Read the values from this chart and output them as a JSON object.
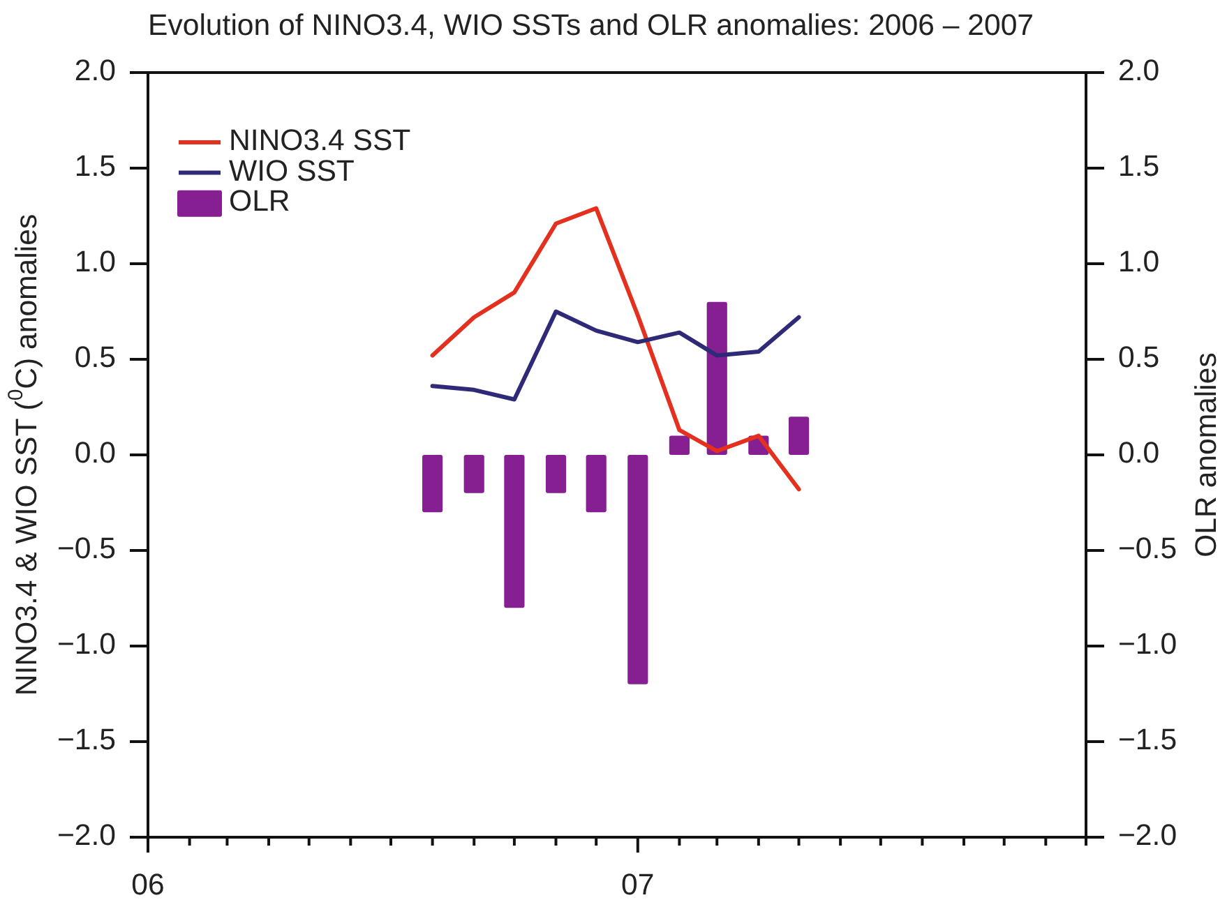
{
  "chart_data": {
    "type": "line",
    "title": "Evolution of NINO3.4, WIO SSTs and OLR anomalies: 2006 – 2007",
    "ylabel": "NINO3.4 & WIO SST ($^{0}$C) anomalies",
    "y2label": "OLR anomalies",
    "x": [
      "2006-08",
      "2006-09",
      "2006-10",
      "2006-11",
      "2006-12",
      "2007-01",
      "2007-02",
      "2007-03",
      "2007-04",
      "2007-05"
    ],
    "xlim": [
      "2006-01",
      "2007-12"
    ],
    "xticks": [
      {
        "value": "2006-01",
        "label": "06"
      },
      {
        "value": "2006-02",
        "label": null
      },
      {
        "value": "2006-03",
        "label": null
      },
      {
        "value": "2006-04",
        "label": null
      },
      {
        "value": "2006-05",
        "label": null
      },
      {
        "value": "2006-06",
        "label": null
      },
      {
        "value": "2006-07",
        "label": null
      },
      {
        "value": "2006-08",
        "label": null
      },
      {
        "value": "2006-09",
        "label": null
      },
      {
        "value": "2006-10",
        "label": null
      },
      {
        "value": "2006-11",
        "label": null
      },
      {
        "value": "2006-12",
        "label": null
      },
      {
        "value": "2007-01",
        "label": "07"
      },
      {
        "value": "2007-02",
        "label": null
      },
      {
        "value": "2007-03",
        "label": null
      },
      {
        "value": "2007-04",
        "label": null
      },
      {
        "value": "2007-05",
        "label": null
      },
      {
        "value": "2007-06",
        "label": null
      },
      {
        "value": "2007-07",
        "label": null
      },
      {
        "value": "2007-08",
        "label": null
      },
      {
        "value": "2007-09",
        "label": null
      },
      {
        "value": "2007-10",
        "label": null
      },
      {
        "value": "2007-11",
        "label": null
      },
      {
        "value": "2007-12",
        "label": null
      }
    ],
    "ylim": [
      -2,
      2
    ],
    "yticks": [
      {
        "value": -2,
        "label": "−2.0"
      },
      {
        "value": -1.5,
        "label": "−1.5"
      },
      {
        "value": -1,
        "label": "−1.0"
      },
      {
        "value": -0.5,
        "label": "−0.5"
      },
      {
        "value": 0,
        "label": "0.0"
      },
      {
        "value": 0.5,
        "label": "0.5"
      },
      {
        "value": 1,
        "label": "1.0"
      },
      {
        "value": 1.5,
        "label": "1.5"
      },
      {
        "value": 2,
        "label": "2.0"
      }
    ],
    "y2lim": [
      -2,
      2
    ],
    "y2ticks": [
      {
        "value": -2,
        "label": "−2.0"
      },
      {
        "value": -1.5,
        "label": "−1.5"
      },
      {
        "value": -1,
        "label": "−1.0"
      },
      {
        "value": -0.5,
        "label": "−0.5"
      },
      {
        "value": 0,
        "label": "0.0"
      },
      {
        "value": 0.5,
        "label": "0.5"
      },
      {
        "value": 1,
        "label": "1.0"
      },
      {
        "value": 1.5,
        "label": "1.5"
      },
      {
        "value": 2,
        "label": "2.0"
      }
    ],
    "series": [
      {
        "name": "NINO3.4 SST",
        "color": "#e3301f",
        "values": [
          0.52,
          0.72,
          0.85,
          1.21,
          1.29,
          0.73,
          0.13,
          0.02,
          0.1,
          -0.18
        ]
      },
      {
        "name": "WIO SST",
        "color": "#2e2a78",
        "values": [
          0.36,
          0.34,
          0.29,
          0.75,
          0.65,
          0.59,
          0.64,
          0.52,
          0.54,
          0.72
        ]
      },
      {
        "name": "OLR",
        "type": "bar",
        "axis": "y2",
        "color": "#851f92",
        "values": [
          -0.3,
          -0.2,
          -0.8,
          -0.2,
          -0.3,
          -1.2,
          0.1,
          0.8,
          0.1,
          0.2
        ]
      }
    ],
    "legend": "top left"
  }
}
